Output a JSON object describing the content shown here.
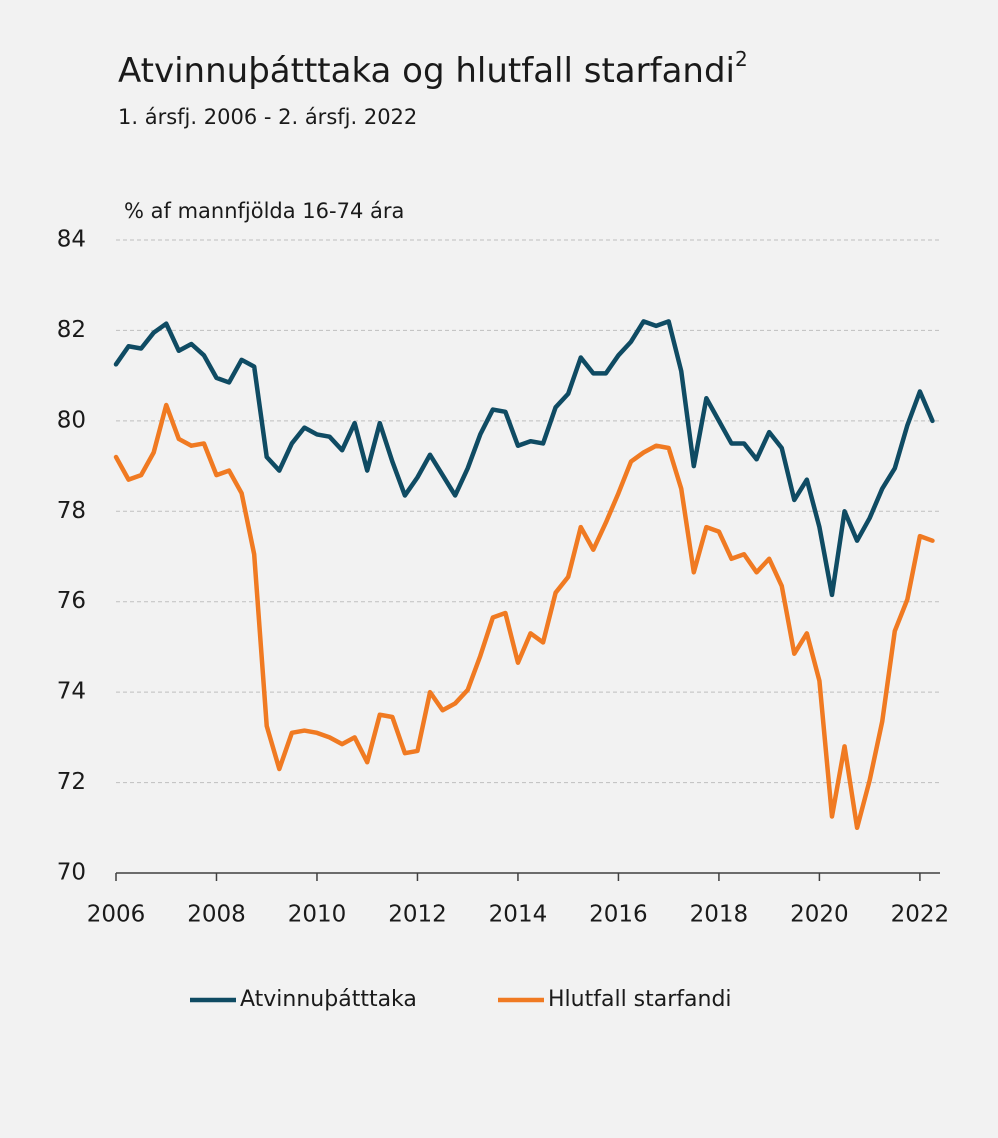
{
  "chart_data": {
    "type": "line",
    "title": "Atvinnuþátttaka og hlutfall starfandi",
    "title_sup": "2",
    "subtitle": "1. ársfj. 2006 - 2. ársfj. 2022",
    "y_label": "% af mannfjölda 16-74 ára",
    "x": [
      2006,
      2006.25,
      2006.5,
      2006.75,
      2007,
      2007.25,
      2007.5,
      2007.75,
      2008,
      2008.25,
      2008.5,
      2008.75,
      2009,
      2009.25,
      2009.5,
      2009.75,
      2010,
      2010.25,
      2010.5,
      2010.75,
      2011,
      2011.25,
      2011.5,
      2011.75,
      2012,
      2012.25,
      2012.5,
      2012.75,
      2013,
      2013.25,
      2013.5,
      2013.75,
      2014,
      2014.25,
      2014.5,
      2014.75,
      2015,
      2015.25,
      2015.5,
      2015.75,
      2016,
      2016.25,
      2016.5,
      2016.75,
      2017,
      2017.25,
      2017.5,
      2017.75,
      2018,
      2018.25,
      2018.5,
      2018.75,
      2019,
      2019.25,
      2019.5,
      2019.75,
      2020,
      2020.25,
      2020.5,
      2020.75,
      2021,
      2021.25,
      2021.5,
      2021.75,
      2022,
      2022.25
    ],
    "series": [
      {
        "name": "Atvinnuþátttaka",
        "color": "#0f4b63",
        "values": [
          81.25,
          81.65,
          81.6,
          81.95,
          82.15,
          81.55,
          81.7,
          81.45,
          80.95,
          80.85,
          81.35,
          81.2,
          79.2,
          78.9,
          79.5,
          79.85,
          79.7,
          79.65,
          79.35,
          79.95,
          78.9,
          79.95,
          79.1,
          78.35,
          78.75,
          79.25,
          78.8,
          78.35,
          78.95,
          79.7,
          80.25,
          80.2,
          79.45,
          79.55,
          79.5,
          80.3,
          80.6,
          81.4,
          81.05,
          81.05,
          81.45,
          81.75,
          82.2,
          82.1,
          82.2,
          81.1,
          79.0,
          80.5,
          80.0,
          79.5,
          79.5,
          79.15,
          79.75,
          79.4,
          78.25,
          78.7,
          77.65,
          76.15,
          78.0,
          77.35,
          77.85,
          78.5,
          78.95,
          79.9,
          80.65,
          80.0
        ]
      },
      {
        "name": "Hlutfall starfandi",
        "color": "#f07a22",
        "values": [
          79.2,
          78.7,
          78.8,
          79.3,
          80.35,
          79.6,
          79.45,
          79.5,
          78.8,
          78.9,
          78.4,
          77.05,
          73.25,
          72.3,
          73.1,
          73.15,
          73.1,
          73.0,
          72.85,
          73.0,
          72.45,
          73.5,
          73.45,
          72.65,
          72.7,
          74.0,
          73.6,
          73.75,
          74.05,
          74.8,
          75.65,
          75.75,
          74.65,
          75.3,
          75.1,
          76.2,
          76.55,
          77.65,
          77.15,
          77.75,
          78.4,
          79.1,
          79.3,
          79.45,
          79.4,
          78.5,
          76.65,
          77.65,
          77.55,
          76.95,
          77.05,
          76.65,
          76.95,
          76.35,
          74.85,
          75.3,
          74.25,
          71.25,
          72.8,
          71.0,
          72.05,
          73.35,
          75.35,
          76.05,
          77.45,
          77.35
        ]
      }
    ],
    "xlim": [
      2006,
      2022.4
    ],
    "xticks": [
      2006,
      2008,
      2010,
      2012,
      2014,
      2016,
      2018,
      2020,
      2022
    ],
    "ylim": [
      70,
      84
    ],
    "yticks": [
      70,
      72,
      74,
      76,
      78,
      80,
      82,
      84
    ],
    "grid": true,
    "legend": "bottom"
  }
}
